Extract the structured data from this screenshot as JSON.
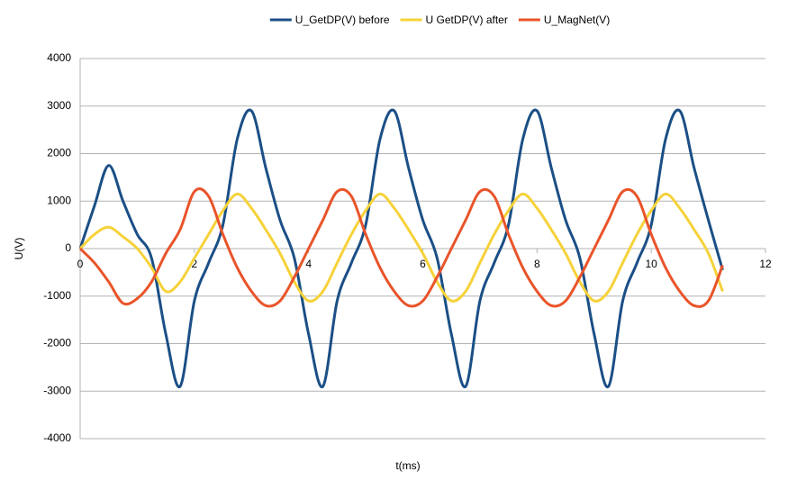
{
  "chart_data": {
    "type": "line",
    "x_label": "t(ms)",
    "y_label": "U(V)",
    "x": [
      0,
      0.25,
      0.5,
      0.75,
      1,
      1.25,
      1.5,
      1.75,
      2,
      2.25,
      2.5,
      2.75,
      3,
      3.25,
      3.5,
      3.75,
      4,
      4.25,
      4.5,
      4.75,
      5,
      5.25,
      5.5,
      5.75,
      6,
      6.25,
      6.5,
      6.75,
      7,
      7.25,
      7.5,
      7.75,
      8,
      8.25,
      8.5,
      8.75,
      9,
      9.25,
      9.5,
      9.75,
      10,
      10.25,
      10.5,
      10.75,
      11,
      11.25
    ],
    "series": [
      {
        "name": "U_GetDP(V) before",
        "color": "#1b4f86",
        "values": [
          0,
          900,
          1750,
          1000,
          300,
          -200,
          -1800,
          -2900,
          -1100,
          -300,
          500,
          2300,
          2900,
          1700,
          600,
          -200,
          -1800,
          -2900,
          -1100,
          -300,
          500,
          2300,
          2900,
          1700,
          600,
          -200,
          -1800,
          -2900,
          -1100,
          -300,
          500,
          2300,
          2900,
          1700,
          600,
          -200,
          -1800,
          -2900,
          -1100,
          -300,
          500,
          2300,
          2900,
          1700,
          600,
          -450
        ]
      },
      {
        "name": "U GetDP(V) after",
        "color": "#f6d23a",
        "values": [
          0,
          300,
          450,
          250,
          0,
          -400,
          -900,
          -700,
          -200,
          300,
          800,
          1150,
          850,
          400,
          -100,
          -700,
          -1100,
          -900,
          -300,
          300,
          800,
          1150,
          850,
          400,
          -100,
          -700,
          -1100,
          -900,
          -300,
          300,
          800,
          1150,
          850,
          400,
          -100,
          -700,
          -1100,
          -900,
          -300,
          300,
          800,
          1150,
          850,
          400,
          -100,
          -900
        ]
      },
      {
        "name": "U_MagNet(V)",
        "color": "#e9542a",
        "values": [
          0,
          -300,
          -700,
          -1150,
          -1050,
          -700,
          -100,
          400,
          1200,
          1100,
          300,
          -400,
          -900,
          -1200,
          -1100,
          -600,
          0,
          600,
          1200,
          1100,
          300,
          -400,
          -900,
          -1200,
          -1100,
          -600,
          0,
          600,
          1200,
          1100,
          300,
          -400,
          -900,
          -1200,
          -1100,
          -600,
          0,
          600,
          1200,
          1100,
          300,
          -400,
          -900,
          -1200,
          -1100,
          -350
        ]
      }
    ],
    "xlim": [
      0,
      12
    ],
    "xticks": [
      0,
      2,
      4,
      6,
      8,
      10,
      12
    ],
    "ylim": [
      -4000,
      4000
    ],
    "yticks": [
      -4000,
      -3000,
      -2000,
      -1000,
      0,
      1000,
      2000,
      3000,
      4000
    ],
    "grid": true,
    "legend": "top"
  }
}
